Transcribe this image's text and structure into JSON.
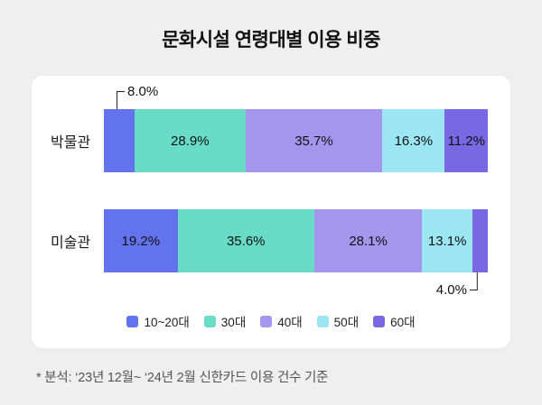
{
  "title": "문화시설 연령대별 이용 비중",
  "footnote": "* 분석: ‘23년 12월~ ‘24년 2월 신한카드 이용 건수 기준",
  "chart_data": {
    "type": "bar",
    "orientation": "horizontal",
    "stacked": true,
    "unit": "%",
    "title": "문화시설 연령대별 이용 비중",
    "categories": [
      "박물관",
      "미술관"
    ],
    "series": [
      {
        "name": "10~20대",
        "color": "#6373ee",
        "values": [
          8.0,
          19.2
        ]
      },
      {
        "name": "30대",
        "color": "#68dcc6",
        "values": [
          28.9,
          35.6
        ]
      },
      {
        "name": "40대",
        "color": "#a496ee",
        "values": [
          35.7,
          28.1
        ]
      },
      {
        "name": "50대",
        "color": "#9ce6f4",
        "values": [
          16.3,
          13.1
        ]
      },
      {
        "name": "60대",
        "color": "#7a67e4",
        "values": [
          11.2,
          4.0
        ]
      }
    ],
    "callouts": [
      {
        "bar": 0,
        "segment": 0,
        "label": "8.0%",
        "position": "above"
      },
      {
        "bar": 1,
        "segment": 4,
        "label": "4.0%",
        "position": "below"
      }
    ],
    "xlim": [
      0,
      100
    ],
    "grid": false,
    "legend_position": "bottom",
    "value_labels": "inside"
  }
}
